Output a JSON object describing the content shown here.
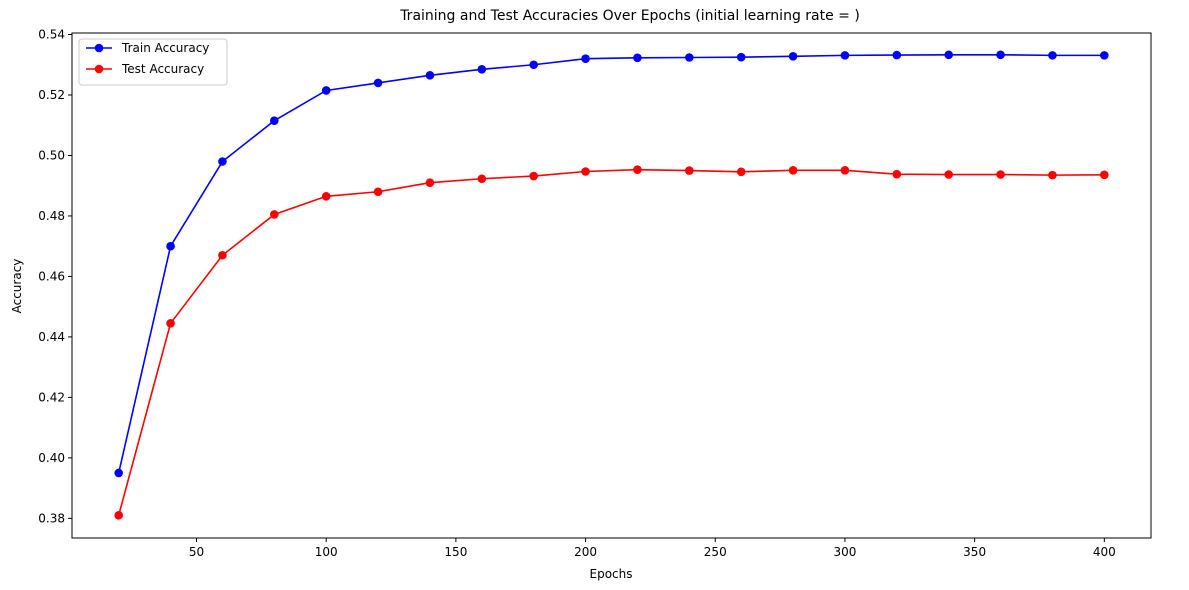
{
  "chart_data": {
    "type": "line",
    "title": "Training and Test Accuracies Over Epochs (initial learning rate = )",
    "xlabel": "Epochs",
    "ylabel": "Accuracy",
    "xlim": [
      2,
      418
    ],
    "ylim": [
      0.3735,
      0.5405
    ],
    "xticks": [
      50,
      100,
      150,
      200,
      250,
      300,
      350,
      400
    ],
    "yticks": [
      0.38,
      0.4,
      0.42,
      0.44,
      0.46,
      0.48,
      0.5,
      0.52,
      0.54
    ],
    "grid": false,
    "legend_position": "top-left",
    "x": [
      20,
      40,
      60,
      80,
      100,
      120,
      140,
      160,
      180,
      200,
      220,
      240,
      260,
      280,
      300,
      320,
      340,
      360,
      380,
      400
    ],
    "series": [
      {
        "name": "Train Accuracy",
        "color": "#0000ff",
        "values": [
          0.395,
          0.47,
          0.498,
          0.5115,
          0.5215,
          0.524,
          0.5265,
          0.5285,
          0.53,
          0.532,
          0.5323,
          0.5324,
          0.5325,
          0.5328,
          0.5331,
          0.5332,
          0.5333,
          0.5333,
          0.5331,
          0.5331
        ]
      },
      {
        "name": "Test Accuracy",
        "color": "#ff0000",
        "values": [
          0.381,
          0.4445,
          0.467,
          0.4805,
          0.4865,
          0.488,
          0.491,
          0.4923,
          0.4932,
          0.4947,
          0.4953,
          0.495,
          0.4946,
          0.4951,
          0.4951,
          0.4938,
          0.4937,
          0.4937,
          0.4935,
          0.4936
        ]
      }
    ]
  }
}
